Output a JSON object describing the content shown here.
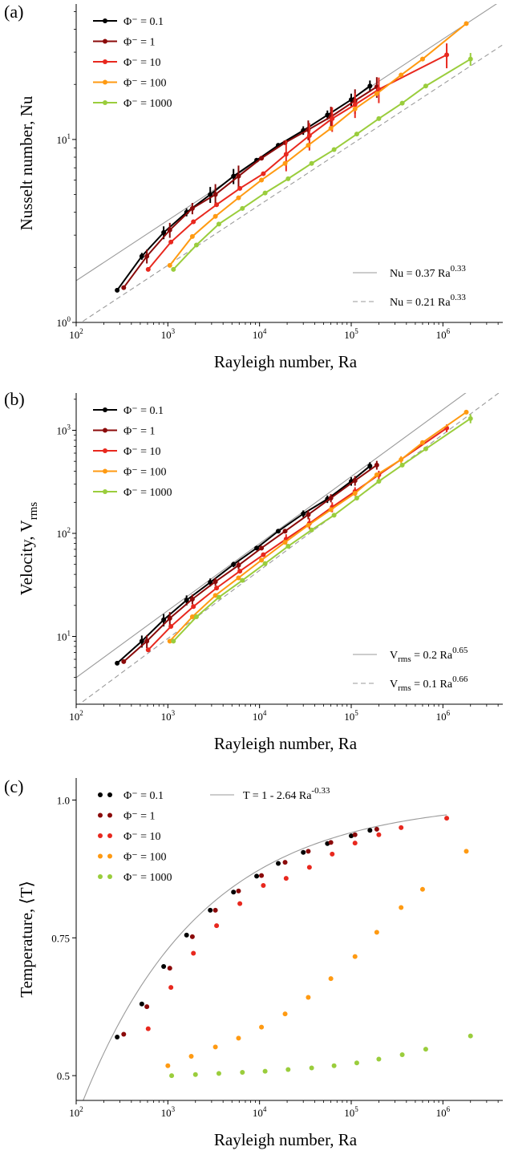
{
  "colors": {
    "phi_0.1": "#000000",
    "phi_1": "#8b0a0a",
    "phi_10": "#e8281e",
    "phi_100": "#ff9a12",
    "phi_1000": "#9acd3c",
    "fit": "#9a9a9a"
  },
  "chart_data": [
    {
      "panel": "(a)",
      "type": "line",
      "xscale": "log",
      "yscale": "log",
      "xlim": [
        100,
        4500000
      ],
      "ylim": [
        1,
        55
      ],
      "xlabel": "Rayleigh number, Ra",
      "ylabel": "Nusselt number, Nu",
      "xticks": [
        {
          "v": 100,
          "b": "10",
          "e": "2"
        },
        {
          "v": 1000,
          "b": "10",
          "e": "3"
        },
        {
          "v": 10000,
          "b": "10",
          "e": "4"
        },
        {
          "v": 100000,
          "b": "10",
          "e": "5"
        },
        {
          "v": 1000000,
          "b": "10",
          "e": "6"
        }
      ],
      "yticks": [
        {
          "v": 1,
          "b": "10",
          "e": "0"
        },
        {
          "v": 10,
          "b": "10",
          "e": "1"
        }
      ],
      "legend_placement": "top-left",
      "series": [
        {
          "name": "Φ⁻ = 0.1",
          "color_key": "phi_0.1",
          "marker": true,
          "line": true,
          "x": [
            280,
            520,
            900,
            1600,
            2900,
            5200,
            9300,
            16000,
            30000,
            55000,
            100000,
            160000
          ],
          "y": [
            1.5,
            2.3,
            3.1,
            4.0,
            5.0,
            6.3,
            7.7,
            9.3,
            11.2,
            13.6,
            16.5,
            19.6
          ],
          "err": [
            0,
            0.1,
            0.25,
            0.2,
            0.5,
            0.6,
            0,
            0,
            0.6,
            0.8,
            1.3,
            1.4
          ]
        },
        {
          "name": "Φ⁻ = 1",
          "color_key": "phi_1",
          "marker": true,
          "line": true,
          "x": [
            330,
            590,
            1050,
            1850,
            3300,
            5900,
            10500,
            19000,
            34000,
            60000,
            110000,
            190000
          ],
          "y": [
            1.55,
            2.3,
            3.2,
            4.2,
            5.0,
            6.3,
            7.9,
            9.6,
            11.3,
            13.3,
            16.3,
            19.4
          ],
          "err": [
            0,
            0.2,
            0.3,
            0.3,
            0.7,
            0.9,
            0,
            0,
            1.4,
            1.8,
            2.5,
            2.5
          ]
        },
        {
          "name": "Φ⁻ = 10",
          "color_key": "phi_10",
          "marker": true,
          "line": true,
          "x": [
            610,
            1080,
            1900,
            3400,
            6100,
            11000,
            19500,
            35000,
            62000,
            110000,
            200000,
            1100000
          ],
          "y": [
            1.95,
            2.75,
            3.55,
            4.4,
            5.4,
            6.5,
            8.3,
            10.5,
            13.0,
            15.5,
            18.8,
            29.0
          ],
          "err": [
            0,
            0,
            0,
            0,
            0,
            0,
            1.6,
            1.8,
            2.0,
            2.4,
            3.0,
            4.5
          ]
        },
        {
          "name": "Φ⁻ = 100",
          "color_key": "phi_100",
          "marker": true,
          "line": true,
          "x": [
            1050,
            1850,
            3300,
            5900,
            10500,
            19000,
            34000,
            60000,
            110000,
            190000,
            350000,
            600000,
            1800000
          ],
          "y": [
            2.05,
            2.95,
            3.8,
            4.8,
            6.0,
            7.4,
            9.3,
            11.5,
            14.7,
            17.8,
            22.5,
            27.5,
            43.0
          ],
          "err": [
            0,
            0,
            0,
            0,
            0,
            0,
            0,
            0,
            0,
            0,
            0,
            0,
            0
          ]
        },
        {
          "name": "Φ⁻ = 1000",
          "color_key": "phi_1000",
          "marker": true,
          "line": true,
          "x": [
            1150,
            2050,
            3600,
            6500,
            11500,
            20500,
            37000,
            65000,
            115000,
            200000,
            360000,
            650000,
            2000000
          ],
          "y": [
            1.95,
            2.65,
            3.45,
            4.2,
            5.1,
            6.1,
            7.4,
            8.8,
            10.7,
            13.0,
            15.8,
            19.6,
            27.5
          ],
          "err": [
            0,
            0,
            0,
            0,
            0,
            0,
            0,
            0,
            0,
            0,
            0,
            0,
            2.2
          ]
        }
      ],
      "fits": [
        {
          "label_html": "Nu = 0.37 Ra<tspan dy='-7' font-size='11'>0.33</tspan>",
          "label": "Nu = 0.37 Ra0.33",
          "coef": 0.37,
          "exp": 0.33,
          "dash": false
        },
        {
          "label_html": "Nu = 0.21 Ra<tspan dy='-7' font-size='11'>0.33</tspan>",
          "label": "Nu = 0.21 Ra0.33",
          "coef": 0.21,
          "exp": 0.33,
          "dash": true
        }
      ]
    },
    {
      "panel": "(b)",
      "type": "line",
      "xscale": "log",
      "yscale": "log",
      "xlim": [
        100,
        4500000
      ],
      "ylim": [
        2.2,
        2300
      ],
      "xlabel": "Rayleigh number, Ra",
      "ylabel": "Velocity, Vrms",
      "xticks": [
        {
          "v": 100,
          "b": "10",
          "e": "2"
        },
        {
          "v": 1000,
          "b": "10",
          "e": "3"
        },
        {
          "v": 10000,
          "b": "10",
          "e": "4"
        },
        {
          "v": 100000,
          "b": "10",
          "e": "5"
        },
        {
          "v": 1000000,
          "b": "10",
          "e": "6"
        }
      ],
      "yticks": [
        {
          "v": 10,
          "b": "10",
          "e": "1"
        },
        {
          "v": 100,
          "b": "10",
          "e": "2"
        },
        {
          "v": 1000,
          "b": "10",
          "e": "3"
        }
      ],
      "legend_placement": "top-left",
      "series": [
        {
          "name": "Φ⁻ = 0.1",
          "color_key": "phi_0.1",
          "marker": true,
          "line": true,
          "x": [
            280,
            520,
            900,
            1600,
            2900,
            5200,
            9300,
            16000,
            30000,
            55000,
            100000,
            160000
          ],
          "y": [
            5.5,
            9.0,
            14.5,
            22.5,
            33.5,
            50,
            72,
            105,
            155,
            215,
            320,
            450
          ],
          "err": [
            0,
            1.2,
            2.0,
            2.5,
            3.0,
            3.0,
            0,
            0,
            12,
            18,
            30,
            40
          ]
        },
        {
          "name": "Φ⁻ = 1",
          "color_key": "phi_1",
          "marker": true,
          "line": true,
          "x": [
            330,
            590,
            1050,
            1850,
            3300,
            5900,
            10500,
            19000,
            34000,
            60000,
            110000,
            190000
          ],
          "y": [
            5.7,
            9.0,
            15.0,
            23.0,
            34.0,
            49,
            72,
            105,
            152,
            220,
            325,
            460
          ],
          "err": [
            0,
            1.3,
            2.2,
            2.5,
            3.0,
            4.0,
            0,
            0,
            15,
            20,
            35,
            45
          ]
        },
        {
          "name": "Φ⁻ = 10",
          "color_key": "phi_10",
          "marker": true,
          "line": true,
          "x": [
            610,
            1080,
            1900,
            3400,
            6100,
            11000,
            19500,
            35000,
            62000,
            110000,
            200000,
            1100000
          ],
          "y": [
            7.4,
            12.5,
            19.5,
            29.5,
            43,
            62,
            88,
            125,
            180,
            255,
            370,
            1050
          ],
          "err": [
            0,
            0,
            0,
            0,
            0,
            0,
            10,
            15,
            20,
            25,
            35,
            90
          ]
        },
        {
          "name": "Φ⁻ = 100",
          "color_key": "phi_100",
          "marker": true,
          "line": true,
          "x": [
            1050,
            1850,
            3300,
            5900,
            10500,
            19000,
            34000,
            60000,
            110000,
            190000,
            350000,
            600000,
            1800000
          ],
          "y": [
            9.0,
            15.5,
            25,
            37,
            55,
            82,
            120,
            170,
            245,
            370,
            520,
            760,
            1500
          ],
          "err": [
            0,
            0,
            0,
            0,
            0,
            0,
            0,
            0,
            0,
            0,
            40,
            0,
            0
          ]
        },
        {
          "name": "Φ⁻ = 1000",
          "color_key": "phi_1000",
          "marker": true,
          "line": true,
          "x": [
            1150,
            2050,
            3600,
            6500,
            11500,
            20500,
            37000,
            65000,
            115000,
            200000,
            360000,
            650000,
            2000000
          ],
          "y": [
            9.0,
            15.5,
            24,
            35,
            51,
            75,
            108,
            150,
            220,
            320,
            460,
            660,
            1300
          ],
          "err": [
            0,
            0,
            0,
            0,
            0,
            0,
            0,
            0,
            0,
            0,
            0,
            0,
            130
          ]
        }
      ],
      "fits": [
        {
          "label_html": "V<tspan dy='4' font-size='11'>rms</tspan><tspan dy='-4'> = 0.2 Ra</tspan><tspan dy='-7' font-size='11'>0.65</tspan>",
          "label": "Vrms = 0.2 Ra0.65",
          "coef": 0.2,
          "exp": 0.65,
          "dash": false
        },
        {
          "label_html": "V<tspan dy='4' font-size='11'>rms</tspan><tspan dy='-4'> = 0.1 Ra</tspan><tspan dy='-7' font-size='11'>0.66</tspan>",
          "label": "Vrms = 0.1 Ra0.66",
          "coef": 0.1,
          "exp": 0.66,
          "dash": true
        }
      ]
    },
    {
      "panel": "(c)",
      "type": "scatter",
      "xscale": "log",
      "yscale": "linear",
      "xlim": [
        100,
        4500000
      ],
      "ylim": [
        0.455,
        1.04
      ],
      "xlabel": "Rayleigh number, Ra",
      "ylabel": "Temperature, ⟨T⟩",
      "xticks": [
        {
          "v": 100,
          "b": "10",
          "e": "2"
        },
        {
          "v": 1000,
          "b": "10",
          "e": "3"
        },
        {
          "v": 10000,
          "b": "10",
          "e": "4"
        },
        {
          "v": 100000,
          "b": "10",
          "e": "5"
        },
        {
          "v": 1000000,
          "b": "10",
          "e": "6"
        }
      ],
      "yticks": [
        {
          "v": 0.5,
          "label": "0.5"
        },
        {
          "v": 0.75,
          "label": "0.75"
        },
        {
          "v": 1.0,
          "label": "1.0"
        }
      ],
      "legend_placement": "top-left",
      "series": [
        {
          "name": "Φ⁻ = 0.1",
          "color_key": "phi_0.1",
          "marker": true,
          "line": false,
          "x": [
            280,
            520,
            900,
            1600,
            2900,
            5200,
            9300,
            16000,
            30000,
            55000,
            100000,
            160000
          ],
          "y": [
            0.57,
            0.63,
            0.698,
            0.755,
            0.8,
            0.833,
            0.862,
            0.885,
            0.905,
            0.921,
            0.935,
            0.945
          ]
        },
        {
          "name": "Φ⁻ = 1",
          "color_key": "phi_1",
          "marker": true,
          "line": false,
          "x": [
            330,
            590,
            1050,
            1850,
            3300,
            5900,
            10500,
            19000,
            34000,
            60000,
            110000,
            190000
          ],
          "y": [
            0.575,
            0.625,
            0.695,
            0.752,
            0.8,
            0.835,
            0.863,
            0.887,
            0.907,
            0.923,
            0.937,
            0.947
          ]
        },
        {
          "name": "Φ⁻ = 10",
          "color_key": "phi_10",
          "marker": true,
          "line": false,
          "x": [
            610,
            1080,
            1900,
            3400,
            6100,
            11000,
            19500,
            35000,
            62000,
            110000,
            200000,
            350000,
            1100000
          ],
          "y": [
            0.585,
            0.66,
            0.722,
            0.772,
            0.812,
            0.845,
            0.858,
            0.878,
            0.902,
            0.922,
            0.937,
            0.95,
            0.967
          ]
        },
        {
          "name": "Φ⁻ = 100",
          "color_key": "phi_100",
          "marker": true,
          "line": false,
          "x": [
            1000,
            1800,
            3300,
            5900,
            10500,
            19000,
            34000,
            60000,
            110000,
            190000,
            350000,
            600000,
            1800000
          ],
          "y": [
            0.518,
            0.535,
            0.552,
            0.568,
            0.588,
            0.612,
            0.642,
            0.676,
            0.716,
            0.76,
            0.805,
            0.838,
            0.907
          ]
        },
        {
          "name": "Φ⁻ = 1000",
          "color_key": "phi_1000",
          "marker": true,
          "line": false,
          "x": [
            1100,
            2000,
            3600,
            6500,
            11500,
            20500,
            37000,
            65000,
            115000,
            200000,
            360000,
            650000,
            2000000
          ],
          "y": [
            0.5,
            0.502,
            0.504,
            0.506,
            0.508,
            0.511,
            0.514,
            0.518,
            0.523,
            0.53,
            0.538,
            0.548,
            0.572
          ]
        }
      ],
      "curve": {
        "label_html": "T = 1 - 2.64 Ra<tspan dy='-7' font-size='11'>-0.33</tspan>",
        "label": "T = 1 - 2.64 Ra-0.33",
        "a": 2.64,
        "exp": -0.33,
        "xmin": 110,
        "xmax": 1100000
      }
    }
  ]
}
